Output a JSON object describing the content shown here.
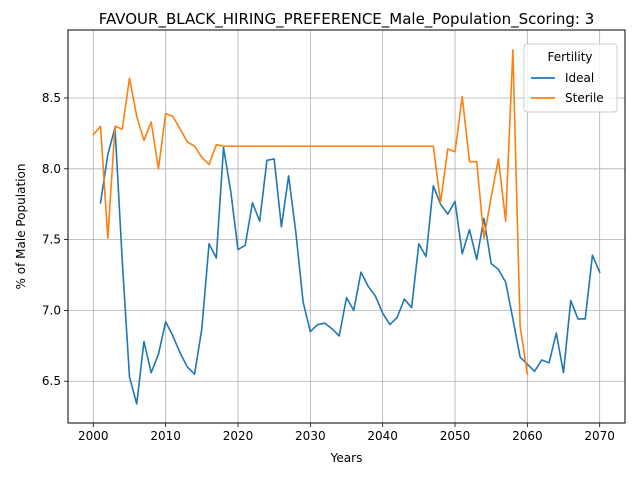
{
  "chart_data": {
    "type": "line",
    "title": "FAVOUR_BLACK_HIRING_PREFERENCE_Male_Population_Scoring: 3",
    "xlabel": "Years",
    "ylabel": "% of Male Population",
    "xlim": [
      1996.5,
      2073.5
    ],
    "ylim": [
      6.205,
      8.98
    ],
    "x_ticks": [
      2000,
      2010,
      2020,
      2030,
      2040,
      2050,
      2060,
      2070
    ],
    "y_ticks": [
      6.5,
      7.0,
      7.5,
      8.0,
      8.5
    ],
    "grid": true,
    "legend": {
      "title": "Fertility",
      "position": "upper right"
    },
    "series": [
      {
        "name": "Ideal",
        "color": "#1f77b4",
        "points": [
          [
            2001,
            7.76
          ],
          [
            2002,
            8.1
          ],
          [
            2003,
            8.29
          ],
          [
            2004,
            7.35
          ],
          [
            2005,
            6.53
          ],
          [
            2006,
            6.34
          ],
          [
            2007,
            6.78
          ],
          [
            2008,
            6.56
          ],
          [
            2009,
            6.69
          ],
          [
            2010,
            6.92
          ],
          [
            2011,
            6.82
          ],
          [
            2012,
            6.7
          ],
          [
            2013,
            6.6
          ],
          [
            2014,
            6.55
          ],
          [
            2015,
            6.87
          ],
          [
            2016,
            7.47
          ],
          [
            2017,
            7.37
          ],
          [
            2018,
            8.15
          ],
          [
            2019,
            7.84
          ],
          [
            2020,
            7.43
          ],
          [
            2021,
            7.46
          ],
          [
            2022,
            7.76
          ],
          [
            2023,
            7.63
          ],
          [
            2024,
            8.06
          ],
          [
            2025,
            8.07
          ],
          [
            2026,
            7.59
          ],
          [
            2027,
            7.95
          ],
          [
            2028,
            7.55
          ],
          [
            2029,
            7.06
          ],
          [
            2030,
            6.85
          ],
          [
            2031,
            6.9
          ],
          [
            2032,
            6.91
          ],
          [
            2033,
            6.87
          ],
          [
            2034,
            6.82
          ],
          [
            2035,
            7.09
          ],
          [
            2036,
            7.0
          ],
          [
            2037,
            7.27
          ],
          [
            2038,
            7.17
          ],
          [
            2039,
            7.1
          ],
          [
            2040,
            6.98
          ],
          [
            2041,
            6.9
          ],
          [
            2042,
            6.95
          ],
          [
            2043,
            7.08
          ],
          [
            2044,
            7.02
          ],
          [
            2045,
            7.47
          ],
          [
            2046,
            7.38
          ],
          [
            2047,
            7.88
          ],
          [
            2048,
            7.75
          ],
          [
            2049,
            7.68
          ],
          [
            2050,
            7.77
          ],
          [
            2051,
            7.4
          ],
          [
            2052,
            7.57
          ],
          [
            2053,
            7.36
          ],
          [
            2054,
            7.65
          ],
          [
            2055,
            7.33
          ],
          [
            2056,
            7.29
          ],
          [
            2057,
            7.2
          ],
          [
            2058,
            6.94
          ],
          [
            2059,
            6.67
          ],
          [
            2060,
            6.62
          ],
          [
            2061,
            6.57
          ],
          [
            2062,
            6.65
          ],
          [
            2063,
            6.63
          ],
          [
            2064,
            6.84
          ],
          [
            2065,
            6.56
          ],
          [
            2066,
            7.07
          ],
          [
            2067,
            6.94
          ],
          [
            2068,
            6.94
          ],
          [
            2069,
            7.39
          ],
          [
            2070,
            7.27
          ]
        ]
      },
      {
        "name": "Sterile",
        "color": "#ff7f0e",
        "points": [
          [
            2000,
            8.24
          ],
          [
            2001,
            8.3
          ],
          [
            2002,
            7.51
          ],
          [
            2003,
            8.3
          ],
          [
            2004,
            8.28
          ],
          [
            2005,
            8.64
          ],
          [
            2006,
            8.37
          ],
          [
            2007,
            8.2
          ],
          [
            2008,
            8.33
          ],
          [
            2009,
            8.0
          ],
          [
            2010,
            8.39
          ],
          [
            2011,
            8.37
          ],
          [
            2012,
            8.28
          ],
          [
            2013,
            8.19
          ],
          [
            2014,
            8.16
          ],
          [
            2015,
            8.08
          ],
          [
            2016,
            8.03
          ],
          [
            2017,
            8.17
          ],
          [
            2018,
            8.16
          ],
          [
            2019,
            8.16
          ],
          [
            2020,
            8.16
          ],
          [
            2030,
            8.16
          ],
          [
            2040,
            8.16
          ],
          [
            2047,
            8.16
          ],
          [
            2048,
            7.76
          ],
          [
            2049,
            8.14
          ],
          [
            2050,
            8.12
          ],
          [
            2051,
            8.51
          ],
          [
            2052,
            8.05
          ],
          [
            2053,
            8.05
          ],
          [
            2054,
            7.51
          ],
          [
            2055,
            7.8
          ],
          [
            2056,
            8.07
          ],
          [
            2057,
            7.63
          ],
          [
            2058,
            8.84
          ],
          [
            2059,
            6.89
          ],
          [
            2060,
            6.55
          ]
        ]
      }
    ]
  }
}
